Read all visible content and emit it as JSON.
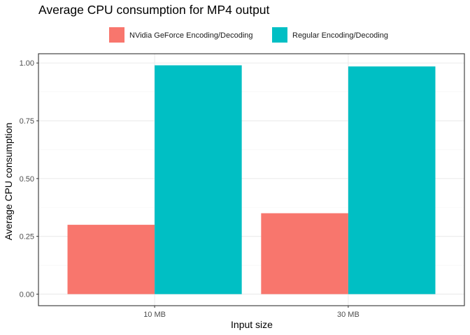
{
  "chart_data": {
    "type": "bar",
    "title": "Average CPU consumption for MP4 output",
    "xlabel": "Input size",
    "ylabel": "Average CPU consumption",
    "categories": [
      "10 MB",
      "30 MB"
    ],
    "series": [
      {
        "name": "NVidia GeForce Encoding/Decoding",
        "values": [
          0.3,
          0.35
        ],
        "color": "#F8766D"
      },
      {
        "name": "Regular Encoding/Decoding",
        "values": [
          0.99,
          0.985
        ],
        "color": "#00BFC4"
      }
    ],
    "yticks": [
      0.0,
      0.25,
      0.5,
      0.75,
      1.0
    ],
    "ytick_labels": [
      "0.00",
      "0.25",
      "0.50",
      "0.75",
      "1.00"
    ],
    "ylim": [
      -0.05,
      1.04
    ],
    "grid": true,
    "legend_position": "top"
  }
}
